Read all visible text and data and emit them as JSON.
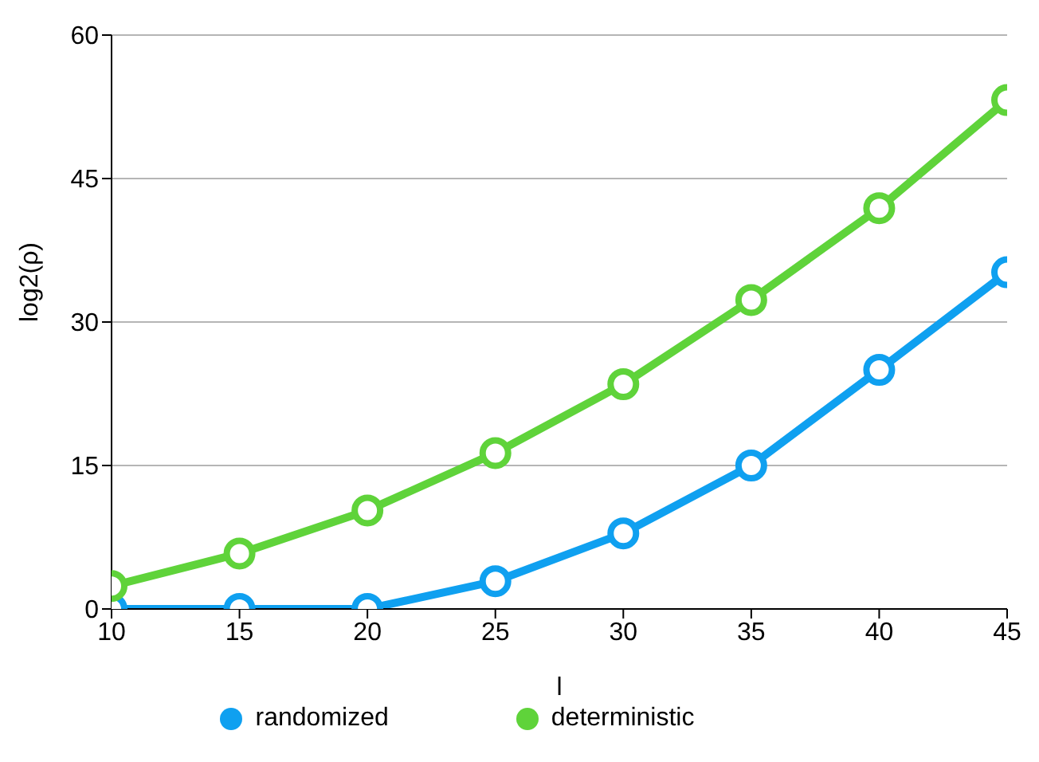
{
  "chart_data": {
    "type": "line",
    "xlabel": "l",
    "ylabel": "log2(ρ)",
    "x": [
      10,
      15,
      20,
      25,
      30,
      35,
      40,
      45
    ],
    "series": [
      {
        "name": "randomized",
        "color": "#0fa0f0",
        "values": [
          0,
          0,
          0,
          2.9,
          7.9,
          15,
          25,
          35.2
        ]
      },
      {
        "name": "deterministic",
        "color": "#5fd33a",
        "values": [
          2.4,
          5.8,
          10.3,
          16.3,
          23.5,
          32.3,
          41.9,
          53.2
        ]
      }
    ],
    "xlim": [
      10,
      45
    ],
    "xticks": [
      10,
      15,
      20,
      25,
      30,
      35,
      40,
      45
    ],
    "ylim": [
      0,
      60
    ],
    "yticks": [
      0,
      15,
      30,
      45,
      60
    ],
    "grid": "y",
    "legend": "bottom",
    "marker": "circle",
    "line_style": "solid"
  }
}
